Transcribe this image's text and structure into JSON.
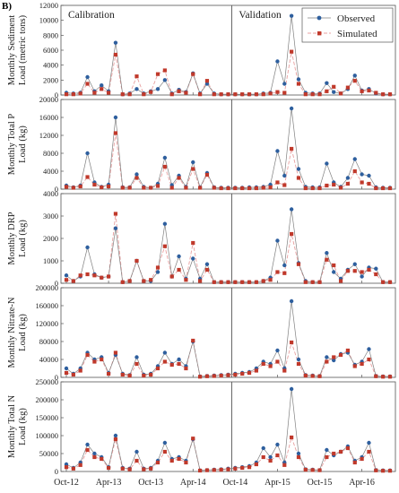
{
  "figure": {
    "panel_label": "B)",
    "x_ticks": [
      "Oct-12",
      "Apr-13",
      "Oct-13",
      "Apr-14",
      "Oct-14",
      "Apr-15",
      "Oct-15",
      "Apr-16"
    ],
    "calibration_label": "Calibration",
    "validation_label": "Validation",
    "legend": {
      "observed": "Observed",
      "simulated": "Simulated"
    }
  },
  "colors": {
    "observed": "#2e5f9e",
    "simulated": "#c0392b",
    "sim_line": "#e8a0a0",
    "obs_line": "#808080"
  },
  "chart_data": [
    {
      "type": "line",
      "ylabel": [
        "Monthly Sediment",
        "Load (metric tons)"
      ],
      "ylim": [
        0,
        12000
      ],
      "yticks": [
        0,
        2000,
        4000,
        6000,
        8000,
        10000,
        12000
      ],
      "tick_labels": [
        "0",
        "2000",
        "4000",
        "6000",
        "8000",
        "10000",
        "12000"
      ],
      "series": [
        {
          "name": "Observed",
          "values": [
            300,
            200,
            300,
            2400,
            500,
            1300,
            500,
            7000,
            100,
            200,
            800,
            200,
            500,
            800,
            2000,
            200,
            700,
            400,
            2900,
            200,
            1500,
            200,
            100,
            100,
            100,
            100,
            100,
            100,
            200,
            300,
            4500,
            1500,
            10600,
            2100,
            300,
            200,
            200,
            1600,
            400,
            200,
            800,
            2600,
            600,
            800,
            200,
            100,
            100
          ]
        },
        {
          "name": "Simulated",
          "values": [
            100,
            100,
            200,
            1500,
            300,
            800,
            300,
            5400,
            100,
            100,
            2500,
            100,
            400,
            2800,
            3300,
            100,
            500,
            300,
            2800,
            100,
            1900,
            100,
            100,
            100,
            100,
            100,
            100,
            100,
            100,
            200,
            400,
            300,
            5800,
            1500,
            100,
            100,
            100,
            500,
            1100,
            200,
            1000,
            1900,
            500,
            600,
            300,
            100,
            100
          ]
        }
      ]
    },
    {
      "type": "line",
      "ylabel": [
        "Monthly Total P",
        "Load (kg)"
      ],
      "ylim": [
        0,
        20000
      ],
      "yticks": [
        0,
        4000,
        8000,
        12000,
        16000,
        20000
      ],
      "tick_labels": [
        "0",
        "4000",
        "8000",
        "12000",
        "16000",
        "20000"
      ],
      "series": [
        {
          "name": "Observed",
          "values": [
            800,
            400,
            800,
            8000,
            1500,
            500,
            1000,
            16000,
            400,
            400,
            3300,
            500,
            300,
            1200,
            7000,
            900,
            3000,
            500,
            6000,
            400,
            3600,
            400,
            300,
            300,
            300,
            300,
            400,
            400,
            500,
            1000,
            8500,
            3000,
            18000,
            4500,
            500,
            400,
            400,
            5700,
            1500,
            500,
            2500,
            6700,
            3300,
            3000,
            400,
            300,
            300
          ]
        },
        {
          "name": "Simulated",
          "values": [
            500,
            300,
            600,
            2700,
            1000,
            400,
            600,
            12500,
            300,
            300,
            2500,
            300,
            300,
            700,
            5000,
            300,
            2500,
            300,
            4500,
            300,
            3200,
            300,
            200,
            200,
            200,
            200,
            200,
            200,
            300,
            400,
            1500,
            900,
            9000,
            2500,
            200,
            200,
            200,
            800,
            1000,
            300,
            1200,
            4000,
            1500,
            1200,
            200,
            200,
            200
          ]
        }
      ]
    },
    {
      "type": "line",
      "ylabel": [
        "Monthly DRP",
        "Load (kg)"
      ],
      "ylim": [
        0,
        4000
      ],
      "yticks": [
        0,
        1000,
        2000,
        3000,
        4000
      ],
      "tick_labels": [
        "0",
        "1000",
        "2000",
        "3000",
        "4000"
      ],
      "series": [
        {
          "name": "Observed",
          "values": [
            350,
            100,
            300,
            1600,
            400,
            250,
            300,
            2450,
            50,
            100,
            1000,
            100,
            100,
            500,
            2650,
            300,
            1200,
            200,
            1100,
            200,
            850,
            50,
            50,
            50,
            50,
            50,
            50,
            50,
            100,
            250,
            1900,
            800,
            3300,
            900,
            100,
            50,
            50,
            1350,
            500,
            200,
            600,
            850,
            300,
            700,
            650,
            50,
            50
          ]
        },
        {
          "name": "Simulated",
          "values": [
            150,
            100,
            350,
            400,
            350,
            250,
            300,
            3100,
            50,
            100,
            1000,
            100,
            150,
            700,
            1650,
            300,
            600,
            150,
            1800,
            100,
            600,
            50,
            50,
            50,
            50,
            50,
            50,
            50,
            100,
            150,
            500,
            450,
            2200,
            850,
            50,
            50,
            50,
            1050,
            800,
            100,
            550,
            550,
            500,
            600,
            400,
            50,
            50
          ]
        }
      ]
    },
    {
      "type": "line",
      "ylabel": [
        "Monthly Nitrate-N",
        "Load (kg)"
      ],
      "ylim": [
        0,
        200000
      ],
      "yticks": [
        0,
        40000,
        80000,
        120000,
        160000,
        200000
      ],
      "tick_labels": [
        "0",
        "40000",
        "80000",
        "120000",
        "160000",
        "200000"
      ],
      "series": [
        {
          "name": "Observed",
          "values": [
            20000,
            8000,
            20000,
            55000,
            40000,
            45000,
            10000,
            50000,
            8000,
            5000,
            45000,
            6000,
            8000,
            25000,
            55000,
            30000,
            40000,
            25000,
            80000,
            2000,
            3000,
            4000,
            5000,
            6000,
            8000,
            10000,
            12000,
            20000,
            35000,
            30000,
            60000,
            20000,
            170000,
            40000,
            5000,
            4000,
            3000,
            45000,
            38000,
            52000,
            55000,
            28000,
            35000,
            63000,
            3000,
            2000,
            2000
          ]
        },
        {
          "name": "Simulated",
          "values": [
            10000,
            6000,
            15000,
            50000,
            35000,
            40000,
            8000,
            55000,
            6000,
            4000,
            30000,
            4000,
            6000,
            20000,
            35000,
            28000,
            30000,
            20000,
            82000,
            1500,
            2500,
            3000,
            4000,
            5000,
            6000,
            8000,
            10000,
            15000,
            30000,
            25000,
            35000,
            15000,
            78000,
            30000,
            4000,
            3000,
            2500,
            35000,
            45000,
            50000,
            60000,
            25000,
            30000,
            40000,
            2500,
            1500,
            1500
          ]
        }
      ]
    },
    {
      "type": "line",
      "ylabel": [
        "Monthly Total N",
        "Load (kg)"
      ],
      "ylim": [
        0,
        250000
      ],
      "yticks": [
        0,
        50000,
        100000,
        150000,
        200000,
        250000
      ],
      "tick_labels": [
        "0",
        "50000",
        "100000",
        "150000",
        "200000",
        "250000"
      ],
      "series": [
        {
          "name": "Observed",
          "values": [
            20000,
            10000,
            25000,
            75000,
            50000,
            40000,
            12000,
            100000,
            10000,
            8000,
            55000,
            8000,
            10000,
            30000,
            80000,
            35000,
            40000,
            30000,
            90000,
            3000,
            4000,
            5000,
            6000,
            8000,
            10000,
            12000,
            15000,
            25000,
            65000,
            40000,
            75000,
            25000,
            230000,
            50000,
            6000,
            5000,
            4000,
            60000,
            45000,
            55000,
            70000,
            30000,
            40000,
            80000,
            4000,
            3000,
            3000
          ]
        },
        {
          "name": "Simulated",
          "values": [
            12000,
            8000,
            18000,
            60000,
            40000,
            35000,
            10000,
            90000,
            8000,
            6000,
            30000,
            6000,
            8000,
            25000,
            55000,
            30000,
            35000,
            25000,
            92000,
            2500,
            3500,
            4000,
            5000,
            6000,
            8000,
            10000,
            12000,
            20000,
            40000,
            30000,
            45000,
            18000,
            95000,
            40000,
            5000,
            4000,
            3500,
            40000,
            50000,
            55000,
            65000,
            25000,
            35000,
            55000,
            3000,
            2000,
            2000
          ]
        }
      ]
    }
  ]
}
